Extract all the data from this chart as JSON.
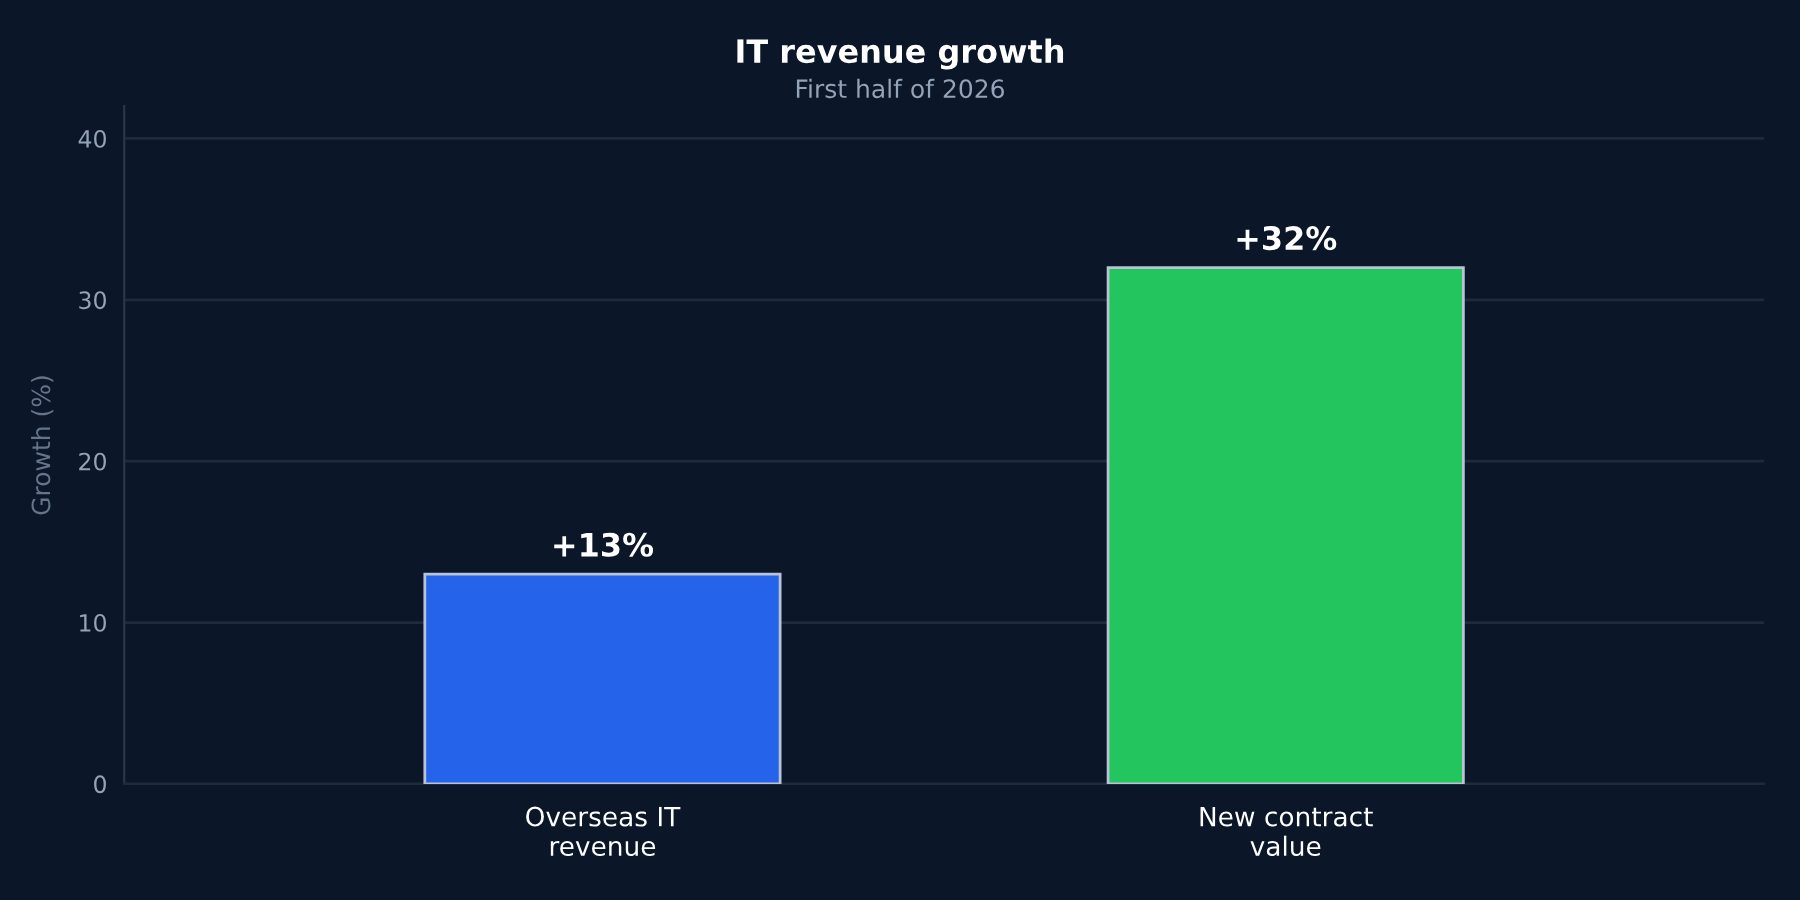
{
  "chart_data": {
    "type": "bar",
    "title": "IT revenue growth",
    "subtitle": "First half of 2026",
    "ylabel": "Growth (%)",
    "categories": [
      "Overseas IT\nrevenue",
      "New contract\nvalue"
    ],
    "values": [
      13,
      32
    ],
    "colors": [
      "#2563eb",
      "#22c55e"
    ],
    "value_labels": [
      "+13%",
      "+32%"
    ],
    "ylim": [
      0,
      42
    ],
    "yticks": [
      0,
      10,
      20,
      30,
      40
    ],
    "grid": "y"
  }
}
